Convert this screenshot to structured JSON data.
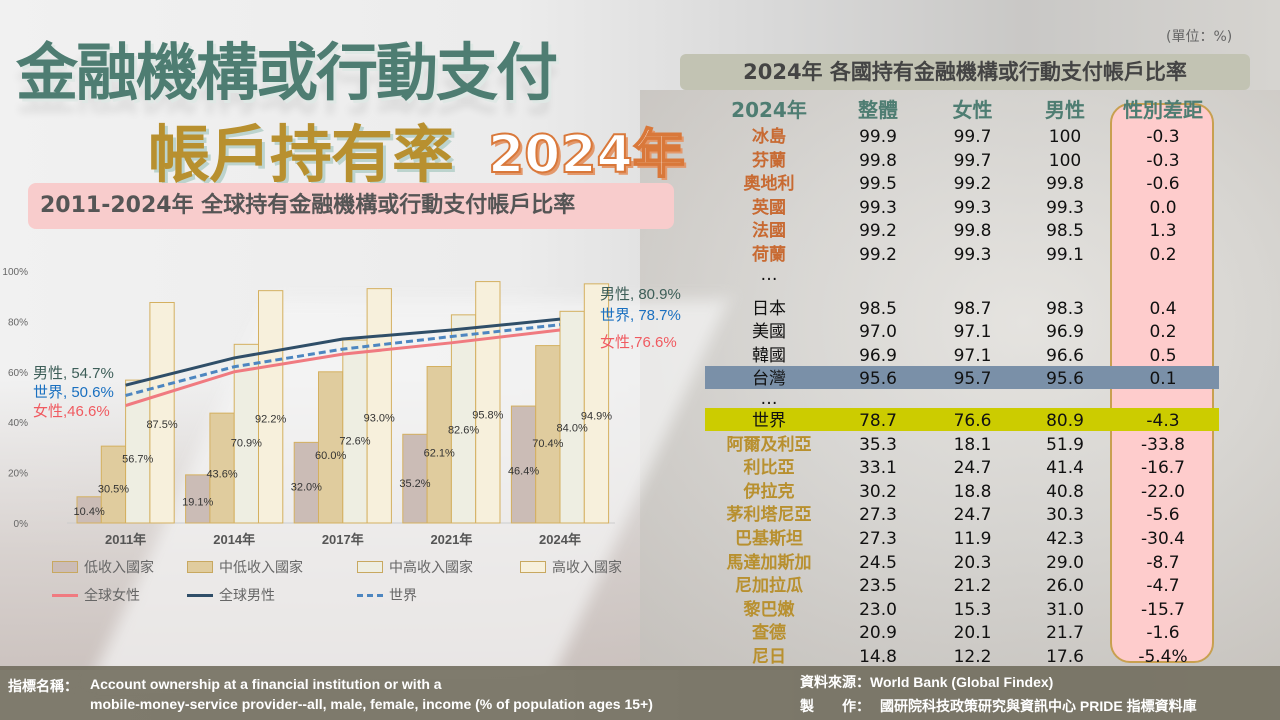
{
  "title": {
    "line1": "金融機構或行動支付",
    "line2": "帳戶持有率",
    "year": "2024年"
  },
  "subtitle": "2011-2024年 全球持有金融機構或行動支付帳戶比率",
  "unit": "(單位：%)",
  "table_title": "2024年 各國持有金融機構或行動支付帳戶比率",
  "table": {
    "headers": [
      "2024年",
      "整體",
      "女性",
      "男性",
      "性別差距"
    ],
    "rows": [
      {
        "type": "top",
        "cells": [
          "冰島",
          "99.9",
          "99.7",
          "100",
          "-0.3"
        ]
      },
      {
        "type": "top",
        "cells": [
          "芬蘭",
          "99.8",
          "99.7",
          "100",
          "-0.3"
        ]
      },
      {
        "type": "top",
        "cells": [
          "奧地利",
          "99.5",
          "99.2",
          "99.8",
          "-0.6"
        ]
      },
      {
        "type": "top",
        "cells": [
          "英國",
          "99.3",
          "99.3",
          "99.3",
          "0.0"
        ]
      },
      {
        "type": "top",
        "cells": [
          "法國",
          "99.2",
          "99.8",
          "98.5",
          "1.3"
        ]
      },
      {
        "type": "top",
        "cells": [
          "荷蘭",
          "99.2",
          "99.3",
          "99.1",
          "0.2"
        ]
      },
      {
        "type": "dots",
        "cells": [
          "…",
          "",
          "",
          "",
          ""
        ]
      },
      {
        "type": "normal",
        "cells": [
          "日本",
          "98.5",
          "98.7",
          "98.3",
          "0.4"
        ]
      },
      {
        "type": "normal",
        "cells": [
          "美國",
          "97.0",
          "97.1",
          "96.9",
          "0.2"
        ]
      },
      {
        "type": "normal",
        "cells": [
          "韓國",
          "96.9",
          "97.1",
          "96.6",
          "0.5"
        ]
      },
      {
        "type": "taiwan",
        "cells": [
          "台灣",
          "95.6",
          "95.7",
          "95.6",
          "0.1"
        ]
      },
      {
        "type": "dots",
        "cells": [
          "…",
          "",
          "",
          "",
          ""
        ]
      },
      {
        "type": "world",
        "cells": [
          "世界",
          "78.7",
          "76.6",
          "80.9",
          "-4.3"
        ]
      },
      {
        "type": "low",
        "cells": [
          "阿爾及利亞",
          "35.3",
          "18.1",
          "51.9",
          "-33.8"
        ]
      },
      {
        "type": "low",
        "cells": [
          "利比亞",
          "33.1",
          "24.7",
          "41.4",
          "-16.7"
        ]
      },
      {
        "type": "low",
        "cells": [
          "伊拉克",
          "30.2",
          "18.8",
          "40.8",
          "-22.0"
        ]
      },
      {
        "type": "low",
        "cells": [
          "茅利塔尼亞",
          "27.3",
          "24.7",
          "30.3",
          "-5.6"
        ]
      },
      {
        "type": "low",
        "cells": [
          "巴基斯坦",
          "27.3",
          "11.9",
          "42.3",
          "-30.4"
        ]
      },
      {
        "type": "low",
        "cells": [
          "馬達加斯加",
          "24.5",
          "20.3",
          "29.0",
          "-8.7"
        ]
      },
      {
        "type": "low",
        "cells": [
          "尼加拉瓜",
          "23.5",
          "21.2",
          "26.0",
          "-4.7"
        ]
      },
      {
        "type": "low",
        "cells": [
          "黎巴嫩",
          "23.0",
          "15.3",
          "31.0",
          "-15.7"
        ]
      },
      {
        "type": "low",
        "cells": [
          "查德",
          "20.9",
          "20.1",
          "21.7",
          "-1.6"
        ]
      },
      {
        "type": "low",
        "cells": [
          "尼日",
          "14.8",
          "12.2",
          "17.6",
          "-5.4%"
        ]
      }
    ],
    "colors": {
      "taiwan": "#7a90a8",
      "world": "#cccc00",
      "gap": "#fecccc"
    }
  },
  "chart_data": {
    "type": "bar",
    "title": "2011-2024年 全球持有金融機構或行動支付帳戶比率",
    "categories": [
      "2011年",
      "2014年",
      "2017年",
      "2021年",
      "2024年"
    ],
    "ylim": [
      0,
      100
    ],
    "yticks": [
      "0%",
      "20%",
      "40%",
      "60%",
      "80%",
      "100%"
    ],
    "series": [
      {
        "name": "低收入國家",
        "color": "#cbbcb6",
        "values": [
          10.4,
          19.1,
          32.0,
          35.2,
          46.4
        ],
        "labels": [
          "10.4%",
          "19.1%",
          "32.0%",
          "35.2%",
          "46.4%"
        ]
      },
      {
        "name": "中低收入國家",
        "color": "#e0cc9e",
        "values": [
          30.5,
          43.6,
          60.0,
          62.1,
          70.4
        ],
        "labels": [
          "30.5%",
          "43.6%",
          "60.0%",
          "62.1%",
          "70.4%"
        ]
      },
      {
        "name": "中高收入國家",
        "color": "#eeeee2",
        "values": [
          56.7,
          70.9,
          72.6,
          82.6,
          84.0
        ],
        "labels": [
          "56.7%",
          "70.9%",
          "72.6%",
          "82.6%",
          "84.0%"
        ]
      },
      {
        "name": "高收入國家",
        "color": "#f7f0dc",
        "values": [
          87.5,
          92.2,
          93.0,
          95.8,
          94.9
        ],
        "labels": [
          "87.5%",
          "92.2%",
          "93.0%",
          "95.8%",
          "94.9%"
        ]
      }
    ],
    "lines": [
      {
        "name": "全球女性",
        "color": "#f07a80",
        "dash": false,
        "values": [
          46.6,
          60,
          67,
          71.5,
          76.6
        ],
        "start_label": "女性,46.6%",
        "end_label": "女性,76.6%"
      },
      {
        "name": "全球男性",
        "color": "#2f4e68",
        "dash": false,
        "values": [
          54.7,
          65.5,
          73,
          76.6,
          80.9
        ],
        "start_label": "男性, 54.7%",
        "end_label": "男性, 80.9%"
      },
      {
        "name": "世界",
        "color": "#4d86c0",
        "dash": true,
        "values": [
          50.6,
          62,
          69,
          74,
          78.7
        ],
        "start_label": "世界, 50.6%",
        "end_label": "世界, 78.7%"
      }
    ],
    "end_label_colors": [
      "#f05a60",
      "#3d5e58",
      "#1a70c0"
    ],
    "legend_position": "bottom"
  },
  "footer": {
    "indicator_label": "指標名稱：",
    "indicator_line1": "Account  ownership at a financial institution or with a",
    "indicator_line2": "mobile-money-service  provider--all, male, female, income  (% of population ages 15+)",
    "source": "資料來源：World Bank (Global Findex)",
    "producer_label": "製　　作：",
    "producer": "國研院科技政策研究與資訊中心 PRIDE 指標資料庫"
  }
}
